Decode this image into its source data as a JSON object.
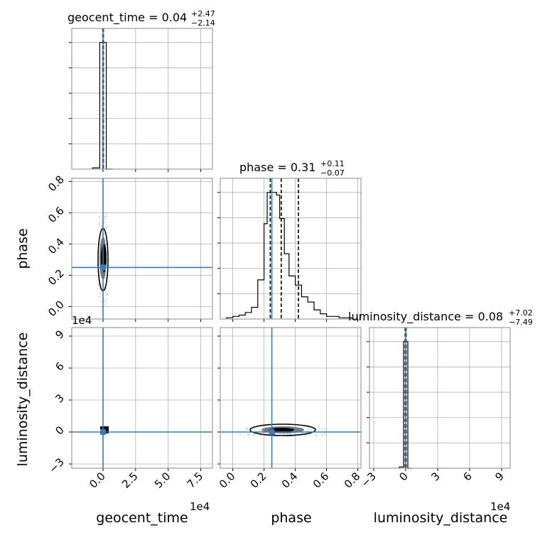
{
  "chart_data": {
    "type": "corner",
    "parameters": [
      "geocent_time",
      "phase",
      "luminosity_distance"
    ],
    "axis_labels": {
      "x": [
        "geocent_time",
        "phase",
        "luminosity_distance"
      ],
      "y": [
        "phase",
        "luminosity_distance"
      ]
    },
    "offset_labels": [
      "1e4",
      "1e4"
    ],
    "truth_color": "#3d7ab8",
    "contour_color": "#000000",
    "grid": true,
    "titles": [
      {
        "param": "geocent_time",
        "name": "geocent_time",
        "median": "0.04",
        "plus": "+2.47",
        "minus": "−2.14"
      },
      {
        "param": "phase",
        "name": "phase",
        "median": "0.31",
        "plus": "+0.11",
        "minus": "−0.07"
      },
      {
        "param": "luminosity_distance",
        "name": "luminosity_distance",
        "median": "0.08",
        "plus": "+7.02",
        "minus": "−7.49"
      }
    ],
    "ranges": {
      "geocent_time": [
        -2.4,
        8.4
      ],
      "phase": [
        -0.08,
        0.82
      ],
      "luminosity_distance": [
        -3.4,
        9.8
      ]
    },
    "ticks": {
      "geocent_time": {
        "values": [
          0.0,
          2.5,
          5.0,
          7.5
        ],
        "labels": [
          "0.0",
          "2.5",
          "5.0",
          "7.5"
        ]
      },
      "phase": {
        "values": [
          0.0,
          0.2,
          0.4,
          0.6,
          0.8
        ],
        "labels": [
          "0.0",
          "0.2",
          "0.4",
          "0.6",
          "0.8"
        ]
      },
      "luminosity_distance": {
        "values": [
          -3,
          0,
          3,
          6,
          9
        ],
        "labels": [
          "−3",
          "0",
          "3",
          "6",
          "9"
        ]
      }
    },
    "truths": {
      "geocent_time": 0.0,
      "phase": 0.25,
      "luminosity_distance": 0.0
    },
    "quantiles": {
      "geocent_time": [
        -0.02,
        0.0,
        0.03
      ],
      "phase": [
        0.24,
        0.31,
        0.42
      ],
      "luminosity_distance": [
        -0.05,
        0.0,
        0.04
      ]
    },
    "histograms": {
      "geocent_time": {
        "edges": [
          -0.8,
          -0.25,
          0.25,
          0.75
        ],
        "counts": [
          0.01,
          1.0,
          0.0
        ]
      },
      "phase": {
        "edges": [
          -0.04,
          0.0,
          0.04,
          0.08,
          0.12,
          0.16,
          0.2,
          0.22,
          0.25,
          0.28,
          0.3,
          0.33,
          0.36,
          0.4,
          0.44,
          0.48,
          0.52,
          0.56,
          0.6,
          0.64,
          0.68,
          0.72,
          0.76,
          0.8
        ],
        "counts": [
          0.01,
          0.02,
          0.03,
          0.05,
          0.09,
          0.3,
          0.73,
          0.97,
          0.97,
          0.95,
          0.77,
          0.5,
          0.33,
          0.26,
          0.17,
          0.13,
          0.07,
          0.04,
          0.02,
          0.02,
          0.01,
          0.01,
          0.0
        ]
      },
      "luminosity_distance": {
        "edges": [
          -0.6,
          -0.2,
          0.2,
          0.6
        ],
        "counts": [
          0.01,
          1.0,
          0.0
        ]
      }
    }
  }
}
